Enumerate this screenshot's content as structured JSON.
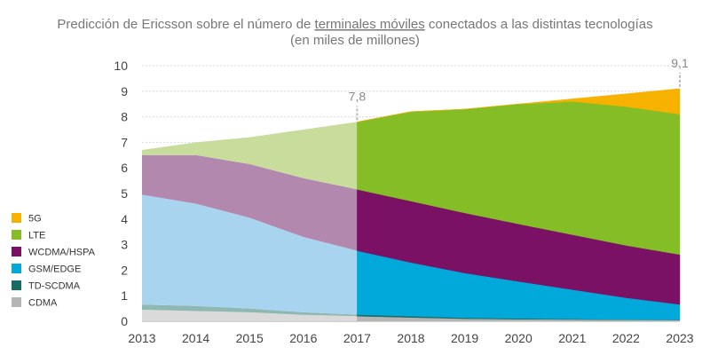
{
  "title": {
    "line1_before": "Predicción de Ericsson sobre el número de ",
    "line1_underlined": "terminales móviles",
    "line1_after": " conectados a las distintas tecnologías",
    "line2": "(en miles de millones)"
  },
  "chart_data": {
    "type": "area",
    "stacked": true,
    "x": [
      2013,
      2014,
      2015,
      2016,
      2017,
      2018,
      2019,
      2020,
      2021,
      2022,
      2023
    ],
    "x_tick_labels": [
      "2013",
      "2014",
      "2015",
      "2016",
      "2017",
      "2018",
      "2019",
      "2020",
      "2021",
      "2022",
      "2023"
    ],
    "ylim": [
      0,
      10
    ],
    "y_tick_labels": [
      "0",
      "1",
      "2",
      "3",
      "4",
      "5",
      "6",
      "7",
      "8",
      "9",
      "10"
    ],
    "grid": true,
    "historical_until": 2017,
    "legend_position": "bottom-left",
    "series": [
      {
        "name": "CDMA",
        "color": "#b5b5b5",
        "faded_color": "#dadada",
        "values": [
          0.45,
          0.4,
          0.35,
          0.25,
          0.2,
          0.15,
          0.1,
          0.08,
          0.07,
          0.06,
          0.05
        ]
      },
      {
        "name": "TD-SCDMA",
        "color": "#1a6b62",
        "faded_color": "#8fb8b2",
        "values": [
          0.2,
          0.2,
          0.15,
          0.1,
          0.06,
          0.05,
          0.04,
          0.03,
          0.02,
          0.01,
          0.01
        ]
      },
      {
        "name": "GSM/EDGE",
        "color": "#00a9d9",
        "faded_color": "#a8d4ef",
        "values": [
          4.3,
          4.0,
          3.55,
          2.95,
          2.5,
          2.1,
          1.75,
          1.45,
          1.15,
          0.85,
          0.6
        ]
      },
      {
        "name": "WCDMA/HSPA",
        "color": "#7b1165",
        "faded_color": "#b388ae",
        "values": [
          1.55,
          1.9,
          2.1,
          2.3,
          2.4,
          2.4,
          2.35,
          2.25,
          2.15,
          2.05,
          1.95
        ]
      },
      {
        "name": "LTE",
        "color": "#85bd26",
        "faded_color": "#c8dc9c",
        "values": [
          0.2,
          0.5,
          1.05,
          1.9,
          2.64,
          3.5,
          4.06,
          4.69,
          5.21,
          5.43,
          5.49
        ]
      },
      {
        "name": "5G",
        "color": "#f7b200",
        "faded_color": "#f7d88a",
        "values": [
          0,
          0,
          0,
          0,
          0,
          0,
          0,
          0,
          0.1,
          0.5,
          1.0
        ]
      }
    ],
    "annotations": [
      {
        "x": 2017,
        "y": 7.8,
        "text": "7,8"
      },
      {
        "x": 2023,
        "y": 9.1,
        "text": "9,1"
      }
    ]
  }
}
